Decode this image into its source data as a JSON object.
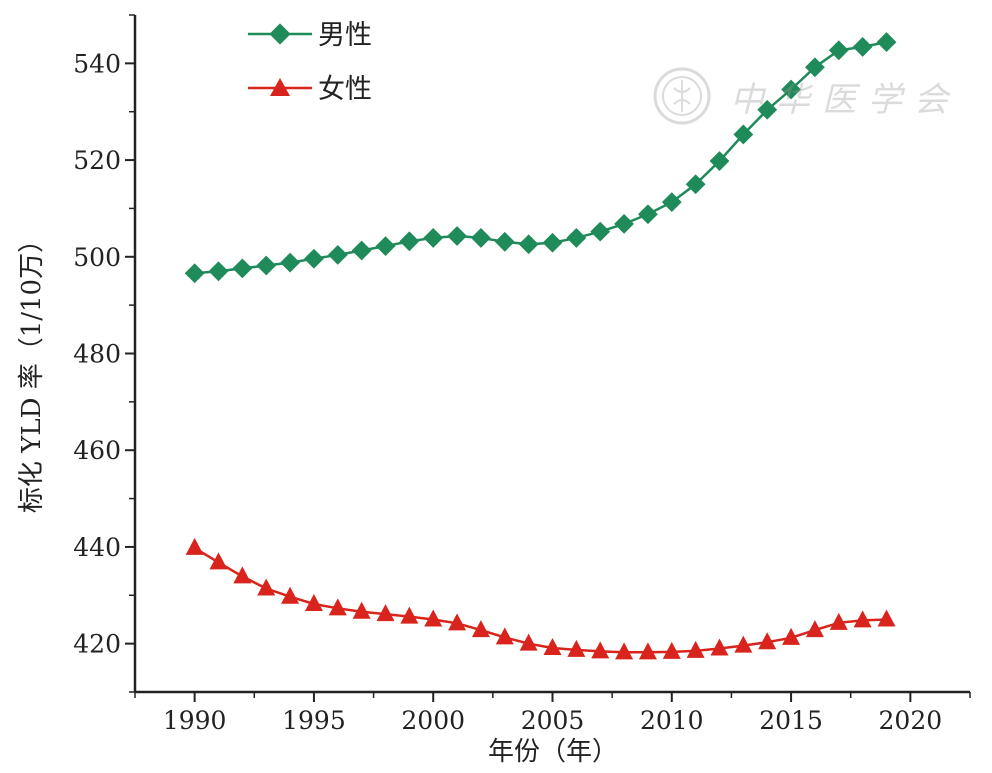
{
  "chart_data": {
    "type": "line",
    "title": "",
    "xlabel": "年份（年）",
    "ylabel": "标化 YLD 率（1/10万）",
    "xlim": [
      1987.5,
      2022.5
    ],
    "ylim": [
      410,
      550
    ],
    "x_ticks": [
      1990,
      1995,
      2000,
      2005,
      2010,
      2015,
      2020
    ],
    "y_ticks": [
      420,
      440,
      460,
      480,
      500,
      520,
      540
    ],
    "grid": false,
    "legend_position": "top-left",
    "x": [
      1990,
      1991,
      1992,
      1993,
      1994,
      1995,
      1996,
      1997,
      1998,
      1999,
      2000,
      2001,
      2002,
      2003,
      2004,
      2005,
      2006,
      2007,
      2008,
      2009,
      2010,
      2011,
      2012,
      2013,
      2014,
      2015,
      2016,
      2017,
      2018,
      2019
    ],
    "series": [
      {
        "name": "男性",
        "color": "#1f8a5a",
        "marker": "diamond",
        "values": [
          496.6,
          497.0,
          497.6,
          498.2,
          498.8,
          499.6,
          500.4,
          501.3,
          502.2,
          503.2,
          503.9,
          504.3,
          503.9,
          503.1,
          502.6,
          502.9,
          503.9,
          505.2,
          506.8,
          508.8,
          511.3,
          515.0,
          519.8,
          525.3,
          530.4,
          534.6,
          539.2,
          542.7,
          543.4,
          544.4
        ]
      },
      {
        "name": "女性",
        "color": "#d8241c",
        "marker": "triangle",
        "values": [
          439.8,
          436.8,
          433.9,
          431.4,
          429.7,
          428.2,
          427.3,
          426.6,
          426.1,
          425.6,
          425.0,
          424.2,
          422.8,
          421.3,
          420.0,
          419.1,
          418.7,
          418.4,
          418.2,
          418.2,
          418.3,
          418.5,
          419.0,
          419.6,
          420.3,
          421.2,
          422.8,
          424.3,
          424.8,
          425.0
        ]
      }
    ]
  },
  "watermark": {
    "text": "中华医学会",
    "seal_icon": "seal-logo-icon"
  }
}
